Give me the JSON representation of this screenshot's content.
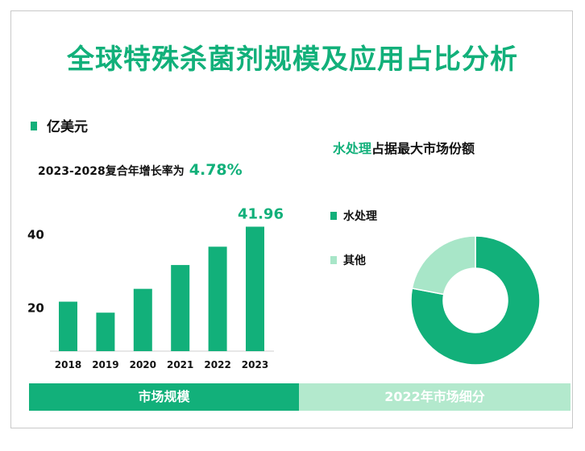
{
  "title": "全球特殊杀菌剂规模及应用占比分析",
  "unit": "亿美元",
  "cagr": {
    "label": "2023-2028复合年增长率为",
    "value": "4.78%"
  },
  "donut_title": {
    "highlight": "水处理",
    "rest": "占据最大市场份额"
  },
  "legend": [
    {
      "label": "水处理",
      "color": "#12b07a"
    },
    {
      "label": "其他",
      "color": "#a8e6c8"
    }
  ],
  "footer": {
    "left": "市场规模",
    "right": "2022年市场细分"
  },
  "colors": {
    "accent": "#12b07a",
    "light": "#b3e9cd"
  },
  "chart_data": [
    {
      "type": "bar",
      "categories": [
        "2018",
        "2019",
        "2020",
        "2021",
        "2022",
        "2023"
      ],
      "values": [
        21.5,
        18.5,
        25,
        31.5,
        36.5,
        41.96
      ],
      "data_labels": [
        null,
        null,
        null,
        null,
        null,
        "41.96"
      ],
      "ytick_labels": [
        "20",
        "40"
      ],
      "ylim": [
        8,
        50
      ],
      "color": "#12b07a"
    },
    {
      "type": "pie",
      "donut": true,
      "labels": [
        "水处理",
        "其他"
      ],
      "values": [
        78,
        22
      ],
      "colors": [
        "#12b07a",
        "#a8e6c8"
      ]
    }
  ]
}
